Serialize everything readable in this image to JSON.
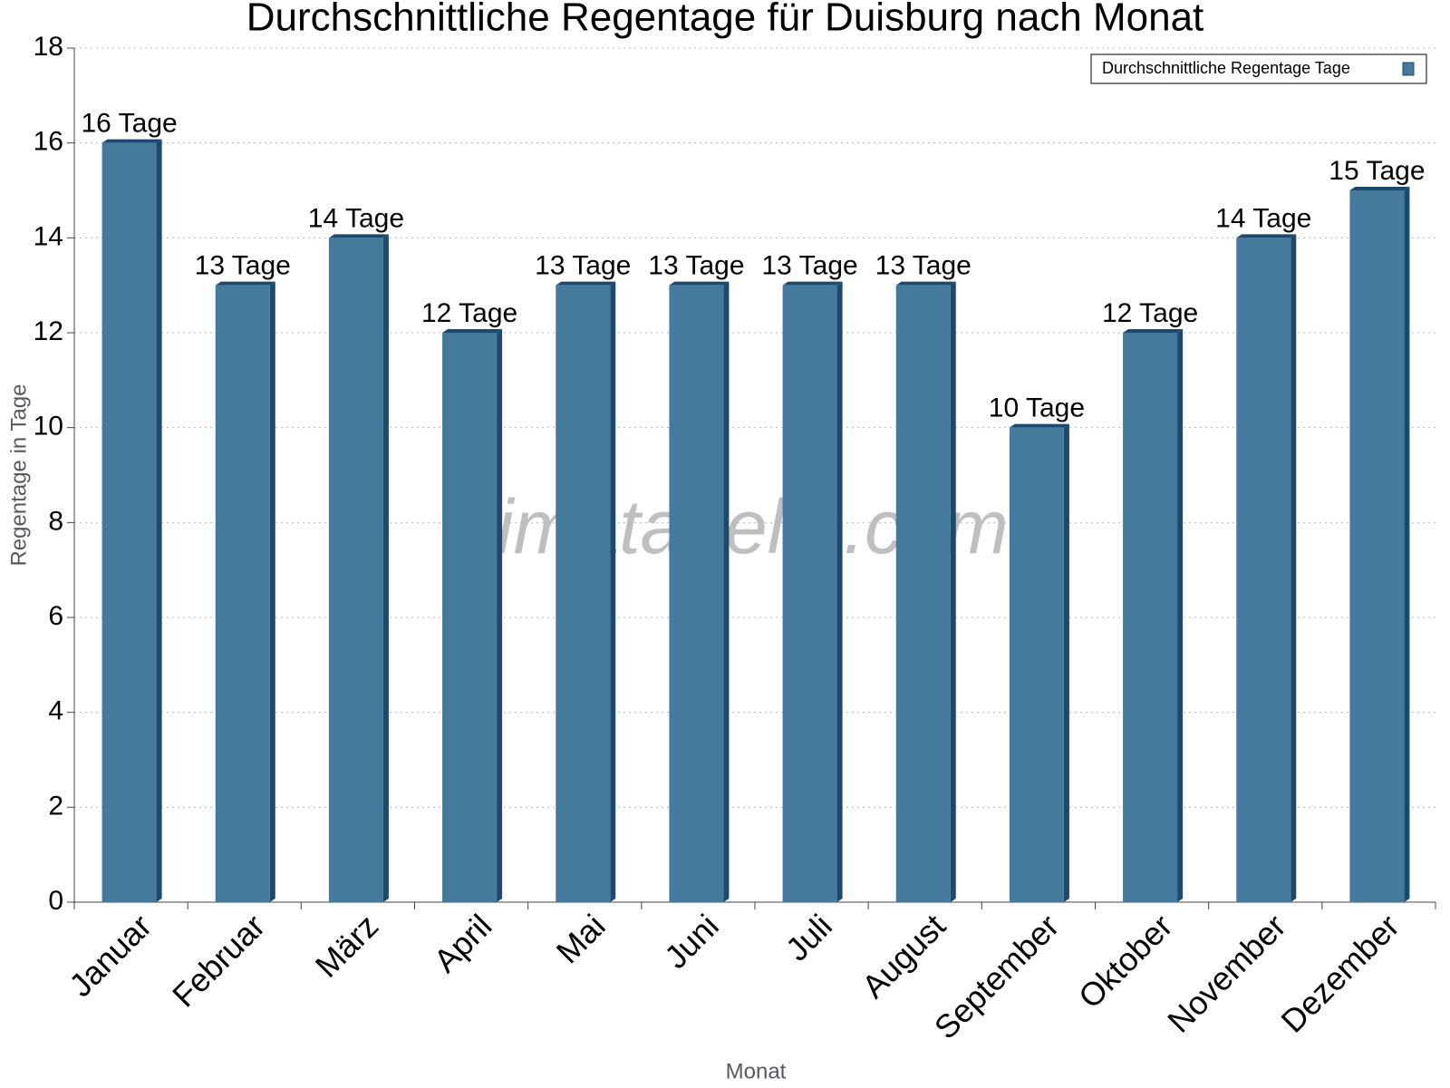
{
  "chart_data": {
    "type": "bar3d",
    "title": "Durchschnittliche Regentage für Duisburg nach Monat",
    "x_label": "Monat",
    "y_label": "Regentage in Tage",
    "watermark": "klimatabelle.com",
    "categories": [
      "Januar",
      "Februar",
      "März",
      "April",
      "Mai",
      "Juni",
      "Juli",
      "August",
      "September",
      "Oktober",
      "November",
      "Dezember"
    ],
    "series": [
      {
        "name": "Durchschnittliche Regentage Tage",
        "color": "#467a9d",
        "values": [
          16,
          13,
          14,
          12,
          13,
          13,
          13,
          13,
          10,
          12,
          14,
          15
        ],
        "value_labels": [
          "16 Tage",
          "13 Tage",
          "14 Tage",
          "12 Tage",
          "13 Tage",
          "13 Tage",
          "13 Tage",
          "13 Tage",
          "10 Tage",
          "12 Tage",
          "14 Tage",
          "15 Tage"
        ]
      }
    ],
    "ylim": [
      0,
      18
    ],
    "yticks": [
      0,
      2,
      4,
      6,
      8,
      10,
      12,
      14,
      16,
      18
    ],
    "grid": true,
    "legend": "top-right"
  }
}
